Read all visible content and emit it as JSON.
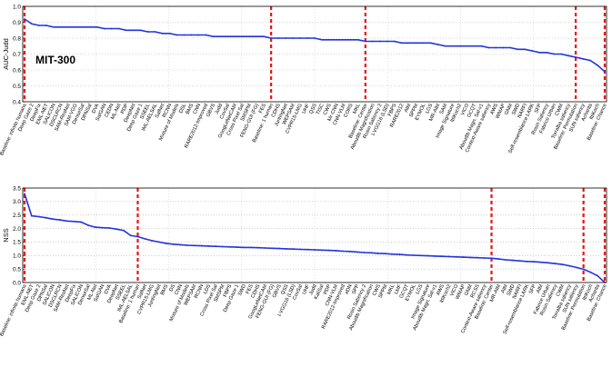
{
  "chart_data": [
    {
      "type": "line",
      "title": "MIT-300",
      "xlabel": "",
      "ylabel": "AUC-Judd",
      "ylim": [
        0.4,
        1.0
      ],
      "yticks": [
        0.4,
        0.5,
        0.6,
        0.7,
        0.8,
        0.9,
        1.0
      ],
      "grid": true,
      "line_color": "#2233dd",
      "marker_color": "#ee1111",
      "categories": [
        "Baseline: infinite humans",
        "Deep Gaze 2",
        "DeepFix",
        "EML-NET",
        "SALICON",
        "DSCLRCN",
        "SAM-ResNet",
        "SAM-VGG",
        "DenseSal",
        "DPNSal",
        "DVA",
        "SalGAN",
        "CEDN",
        "ML-Net",
        "PDP",
        "DeepNet",
        "Deep Gaze 1",
        "SSEEL",
        "IML-AELSAL",
        "SalNet",
        "RCNN",
        "Mixture of Models",
        "DSL",
        "BMS",
        "CNN",
        "RARE2012-Improved",
        "GBVS",
        "Judd",
        "CovSal",
        "GoogLeNetCAM",
        "Cross Pixel Sal",
        "SMSPM",
        "FENG-GUI (FG)",
        "FES",
        "Baseline: 1 human",
        "CDHS",
        "JuntingNet",
        "WEPSAM",
        "CVPR15-LMG",
        "UHF",
        "QSS",
        "TISC",
        "CWS",
        "Mr-CNN",
        "CNN-VLM",
        "CORS",
        "MKL",
        "Baseline: Center",
        "Aboudib Magnification",
        "Rosin Saliency 2",
        "I-VGG16 (LSD)",
        "FBPS",
        "RARE2012",
        "AIM",
        "SPPM",
        "EYMOL",
        "LGS",
        "MR-AIM",
        "SAM",
        "Image Signature",
        "IttiKoch2",
        "VICO",
        "GCQT",
        "Aboudib Magn. Sal-v1",
        "Context-Aware saliency",
        "AWS",
        "WMAP",
        "GNM",
        "SWD",
        "NARFI",
        "Self-resemblance LARK",
        "SFP",
        "Rosin Saliency",
        "Fabrice Urban",
        "CWM",
        "Torralba saliency",
        "Baseline: Permutation",
        "SUN saliency",
        "Achanta",
        "IttiKoch",
        "Baseline: Chance"
      ],
      "values": [
        0.92,
        0.89,
        0.88,
        0.88,
        0.87,
        0.87,
        0.87,
        0.87,
        0.87,
        0.87,
        0.87,
        0.86,
        0.86,
        0.86,
        0.85,
        0.85,
        0.85,
        0.84,
        0.84,
        0.83,
        0.83,
        0.82,
        0.82,
        0.82,
        0.82,
        0.82,
        0.81,
        0.81,
        0.81,
        0.81,
        0.81,
        0.81,
        0.81,
        0.81,
        0.8,
        0.8,
        0.8,
        0.8,
        0.8,
        0.8,
        0.8,
        0.79,
        0.79,
        0.79,
        0.79,
        0.79,
        0.79,
        0.78,
        0.78,
        0.78,
        0.78,
        0.78,
        0.77,
        0.77,
        0.77,
        0.77,
        0.77,
        0.76,
        0.75,
        0.75,
        0.75,
        0.75,
        0.75,
        0.75,
        0.74,
        0.74,
        0.74,
        0.74,
        0.73,
        0.73,
        0.72,
        0.71,
        0.71,
        0.7,
        0.7,
        0.69,
        0.68,
        0.67,
        0.66,
        0.63,
        0.59
      ],
      "markers": [
        "Baseline: infinite humans",
        "Baseline: 1 human",
        "Baseline: Center",
        "Baseline: Permutation",
        "Baseline: Chance"
      ]
    },
    {
      "type": "line",
      "title": "",
      "xlabel": "",
      "ylabel": "NSS",
      "ylim": [
        0,
        3.5
      ],
      "yticks": [
        0,
        0.5,
        1.0,
        1.5,
        2.0,
        2.5,
        3.0,
        3.5
      ],
      "grid": true,
      "line_color": "#2233dd",
      "marker_color": "#ee1111",
      "categories": [
        "Baseline: infinite humans",
        "EML-NET",
        "Deep Gaze 2",
        "DPNSal",
        "SALICON",
        "DSCLRCN",
        "SAM-ResNet",
        "DeepFix",
        "SALICON",
        "DenseSal",
        "ML-Net",
        "SalGAN",
        "DVA",
        "DeepNet",
        "SSEEL",
        "IML-AELSAL",
        "Baseline: 1 human",
        "SalNet",
        "CVPR15-LMG",
        "JuntingNet",
        "BMS",
        "DS",
        "CNN",
        "Mixture of Models",
        "WEPSAM",
        "RCNN",
        "LDS",
        "Cross Pixel Sal",
        "SMSPM",
        "FBPS",
        "Deep Gaze 1",
        "SWD",
        "FES",
        "CDHS",
        "GoogLeNetCAM",
        "FENG-GUI (FG)",
        "GBVS",
        "QSS",
        "I-VGG16 (LSD)",
        "CovSal",
        "UHF",
        "Judd",
        "KaliSal",
        "PDP",
        "CNN-VLM",
        "RARE2012-Improved",
        "eDN",
        "SPP",
        "Rosin Saliency 2",
        "Aboudib Magnification",
        "CWS",
        "SPPM",
        "MKL",
        "LMF",
        "GCQT",
        "EYMOL",
        "LGS",
        "Image Signature",
        "Aboudib Magn. Sal-v1",
        "AWS",
        "IttiKoch2",
        "VICO",
        "WMAP",
        "GNM",
        "RCSS",
        "Context-Aware saliency",
        "Baseline: Center",
        "MR-AIM",
        "AIM",
        "SWD",
        "NARFI",
        "Self-resemblance LARK",
        "SFP",
        "AIM",
        "Fabrice Urban",
        "Rosin Saliency",
        "CWM",
        "Torralba saliency",
        "SUN saliency",
        "Baseline: Permutation",
        "IttiKoch",
        "Achanta",
        "Baseline: Chance"
      ],
      "values": [
        3.29,
        2.47,
        2.44,
        2.4,
        2.35,
        2.32,
        2.28,
        2.26,
        2.24,
        2.12,
        2.05,
        2.03,
        2.02,
        1.98,
        1.93,
        1.74,
        1.7,
        1.62,
        1.55,
        1.5,
        1.45,
        1.42,
        1.4,
        1.38,
        1.37,
        1.36,
        1.35,
        1.34,
        1.33,
        1.32,
        1.31,
        1.3,
        1.3,
        1.29,
        1.28,
        1.27,
        1.26,
        1.25,
        1.24,
        1.23,
        1.22,
        1.21,
        1.2,
        1.19,
        1.18,
        1.16,
        1.15,
        1.13,
        1.11,
        1.1,
        1.08,
        1.07,
        1.05,
        1.04,
        1.02,
        1.01,
        1.0,
        0.99,
        0.98,
        0.97,
        0.96,
        0.95,
        0.94,
        0.93,
        0.92,
        0.91,
        0.9,
        0.87,
        0.84,
        0.82,
        0.8,
        0.78,
        0.77,
        0.75,
        0.73,
        0.7,
        0.67,
        0.62,
        0.56,
        0.49,
        0.38,
        0.25,
        0.0
      ],
      "markers": [
        "Baseline: infinite humans",
        "Baseline: 1 human",
        "Baseline: Center",
        "Baseline: Permutation",
        "Baseline: Chance"
      ]
    }
  ]
}
